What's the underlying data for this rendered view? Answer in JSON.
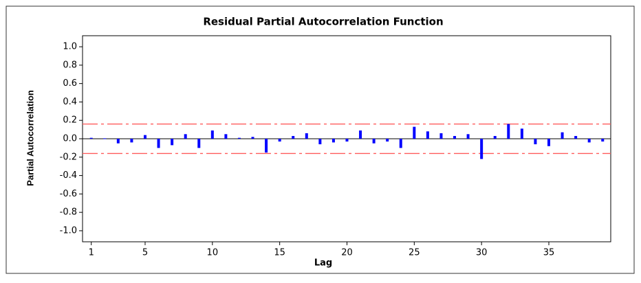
{
  "chart_data": {
    "type": "bar",
    "title": "Residual Partial Autocorrelation Function",
    "x_label": "Lag",
    "y_label": "Partial Autocorrelation",
    "x": [
      1,
      2,
      3,
      4,
      5,
      6,
      7,
      8,
      9,
      10,
      11,
      12,
      13,
      14,
      15,
      16,
      17,
      18,
      19,
      20,
      21,
      22,
      23,
      24,
      25,
      26,
      27,
      28,
      29,
      30,
      31,
      32,
      33,
      34,
      35,
      36,
      37,
      38,
      39
    ],
    "values": [
      0.01,
      0.005,
      -0.05,
      -0.04,
      0.04,
      -0.1,
      -0.07,
      0.05,
      -0.1,
      0.09,
      0.05,
      0.01,
      0.02,
      -0.15,
      -0.03,
      0.03,
      0.06,
      -0.06,
      -0.04,
      -0.03,
      0.09,
      -0.05,
      -0.03,
      -0.1,
      0.13,
      0.08,
      0.06,
      0.03,
      0.05,
      -0.22,
      0.03,
      0.16,
      0.11,
      -0.06,
      -0.08,
      0.07,
      0.03,
      -0.04,
      -0.03
    ],
    "color": "#0000ff",
    "significance_limits": [
      0.16,
      -0.16
    ],
    "limit_color": "#ff5a5a",
    "xlim": [
      0.35,
      39.6
    ],
    "xticks": [
      1,
      5,
      10,
      15,
      20,
      25,
      30,
      35
    ],
    "ylim": [
      -1.12,
      1.12
    ],
    "yticks": [
      {
        "value": 1.0,
        "label": "1.0"
      },
      {
        "value": 0.8,
        "label": "0.8"
      },
      {
        "value": 0.6,
        "label": "0.6"
      },
      {
        "value": 0.4,
        "label": "0.4"
      },
      {
        "value": 0.2,
        "label": "0.2"
      },
      {
        "value": 0.0,
        "label": "0.0"
      },
      {
        "value": -0.2,
        "label": "-0.2"
      },
      {
        "value": -0.4,
        "label": "-0.4"
      },
      {
        "value": -0.6,
        "label": "-0.6"
      },
      {
        "value": -0.8,
        "label": "-0.8"
      },
      {
        "value": -1.0,
        "label": "-1.0"
      }
    ]
  }
}
